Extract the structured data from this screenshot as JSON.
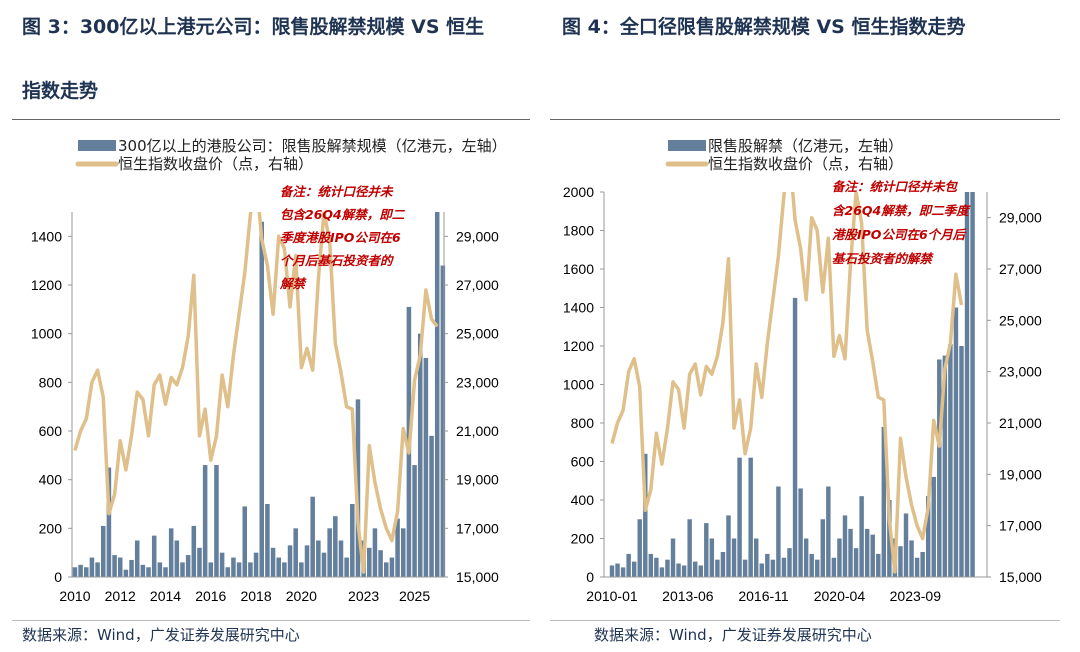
{
  "left": {
    "title_line1": "图 3：300亿以上港元公司：限售股解禁规模 VS 恒生",
    "title_line2": "指数走势",
    "source": "数据来源：Wind，广发证券发展研究中心"
  },
  "right": {
    "title_line1": "图 4：全口径限售股解禁规模 VS 恒生指数走势",
    "source": "数据来源：Wind，广发证券发展研究中心"
  },
  "colors": {
    "bar": "#637f9b",
    "line": "#dfbf8a",
    "note": "#c00000"
  },
  "chart_data": [
    {
      "type": "bar+line",
      "title": "300亿以上港元公司：限售股解禁规模 VS 恒生指数走势",
      "legend": [
        "300亿以上的港股公司：限售股解禁规模（亿港元，左轴）",
        "恒生指数收盘价（点，右轴）"
      ],
      "note": [
        "备注：统计口径并未",
        "包含26Q4解禁，即二",
        "季度港股IPO公司在6",
        "个月后基石投资者的",
        "解禁"
      ],
      "x_ticks": [
        "2010",
        "2012",
        "2014",
        "2016",
        "2018",
        "2020",
        "2023",
        "2025"
      ],
      "x_tick_values": [
        2010,
        2012,
        2014,
        2016,
        2018,
        2020,
        2022.75,
        2025
      ],
      "xlim": [
        2009.87,
        2026.3
      ],
      "left_ticks": [
        "0",
        "200",
        "400",
        "600",
        "800",
        "1000",
        "1200",
        "1400"
      ],
      "left_ylim": [
        0,
        1500
      ],
      "right_ticks": [
        "15,000",
        "17,000",
        "19,000",
        "21,000",
        "23,000",
        "25,000",
        "27,000",
        "29,000"
      ],
      "right_ylim": [
        15000,
        30000
      ],
      "bar_start": 2010.0,
      "bar_step": 0.25,
      "bars": [
        40,
        50,
        40,
        80,
        60,
        210,
        450,
        90,
        80,
        30,
        70,
        150,
        50,
        40,
        170,
        60,
        40,
        200,
        150,
        60,
        90,
        210,
        120,
        460,
        60,
        460,
        100,
        40,
        80,
        60,
        290,
        60,
        100,
        1460,
        300,
        120,
        80,
        60,
        130,
        200,
        60,
        130,
        330,
        150,
        100,
        200,
        250,
        150,
        80,
        300,
        730,
        150,
        120,
        200,
        110,
        60,
        80,
        240,
        200,
        1110,
        460,
        1000,
        900,
        580,
        1500,
        1280
      ],
      "line_start": 2010.0,
      "line_step": 0.25,
      "line": [
        20200,
        21000,
        21500,
        23000,
        23500,
        22400,
        17600,
        18400,
        20600,
        19400,
        20800,
        22600,
        22300,
        20800,
        22900,
        23300,
        22100,
        23200,
        22900,
        23600,
        24900,
        27400,
        20800,
        21900,
        19800,
        20800,
        23300,
        22000,
        24100,
        25800,
        27500,
        29900,
        31500,
        28900,
        27800,
        25800,
        29000,
        28500,
        26100,
        28200,
        23600,
        24400,
        23500,
        27200,
        30000,
        28800,
        24600,
        23400,
        22000,
        21900,
        17200,
        15200,
        20400,
        18900,
        17800,
        17000,
        16500,
        17700,
        21100,
        20100,
        23100,
        24100,
        26800,
        25600,
        25300
      ]
    },
    {
      "type": "bar+line",
      "title": "全口径限售股解禁规模 VS 恒生指数走势",
      "legend": [
        "限售股解禁（亿港元，左轴）",
        "恒生指数收盘价（点，右轴）"
      ],
      "note": [
        "备注：统计口径并未包",
        "含26Q4解禁，即二季度",
        "港股IPO公司在6个月后",
        "基石投资者的解禁"
      ],
      "x_ticks": [
        "2010-01",
        "2013-06",
        "2016-11",
        "2020-04",
        "2023-09"
      ],
      "x_tick_values": [
        2010.0,
        2013.42,
        2016.83,
        2020.25,
        2023.67
      ],
      "xlim": [
        2009.64,
        2026.9
      ],
      "left_ticks": [
        "0",
        "200",
        "400",
        "600",
        "800",
        "1000",
        "1200",
        "1400",
        "1600",
        "1800",
        "2000"
      ],
      "left_ylim": [
        0,
        2000
      ],
      "right_ticks": [
        "15,000",
        "17,000",
        "19,000",
        "21,000",
        "23,000",
        "25,000",
        "27,000",
        "29,000"
      ],
      "right_ylim": [
        15000,
        30000
      ],
      "bar_start": 2010.0,
      "bar_step": 0.25,
      "bars": [
        60,
        70,
        50,
        120,
        80,
        300,
        640,
        120,
        100,
        50,
        90,
        200,
        70,
        60,
        300,
        80,
        60,
        280,
        200,
        90,
        130,
        320,
        200,
        620,
        90,
        620,
        200,
        70,
        120,
        90,
        470,
        100,
        150,
        1450,
        460,
        200,
        120,
        90,
        300,
        470,
        100,
        200,
        320,
        250,
        150,
        420,
        250,
        220,
        120,
        780,
        400,
        200,
        160,
        330,
        190,
        100,
        130,
        420,
        520,
        1130,
        1150,
        1210,
        1400,
        1200,
        2000,
        2000
      ],
      "line_start": 2010.0,
      "line_step": 0.25,
      "line": [
        20200,
        21000,
        21500,
        23000,
        23500,
        22400,
        17600,
        18400,
        20600,
        19400,
        20800,
        22600,
        22300,
        20800,
        22900,
        23300,
        22100,
        23200,
        22900,
        23600,
        24900,
        27400,
        20800,
        21900,
        19800,
        20800,
        23300,
        22000,
        24100,
        25800,
        27500,
        29900,
        31500,
        28900,
        27800,
        25800,
        29000,
        28500,
        26100,
        28200,
        23600,
        24400,
        23500,
        27200,
        30000,
        28800,
        24600,
        23400,
        22000,
        21900,
        17200,
        15200,
        20400,
        18900,
        17800,
        17000,
        16500,
        17700,
        21100,
        20100,
        23100,
        24100,
        26800,
        25600
      ]
    }
  ]
}
